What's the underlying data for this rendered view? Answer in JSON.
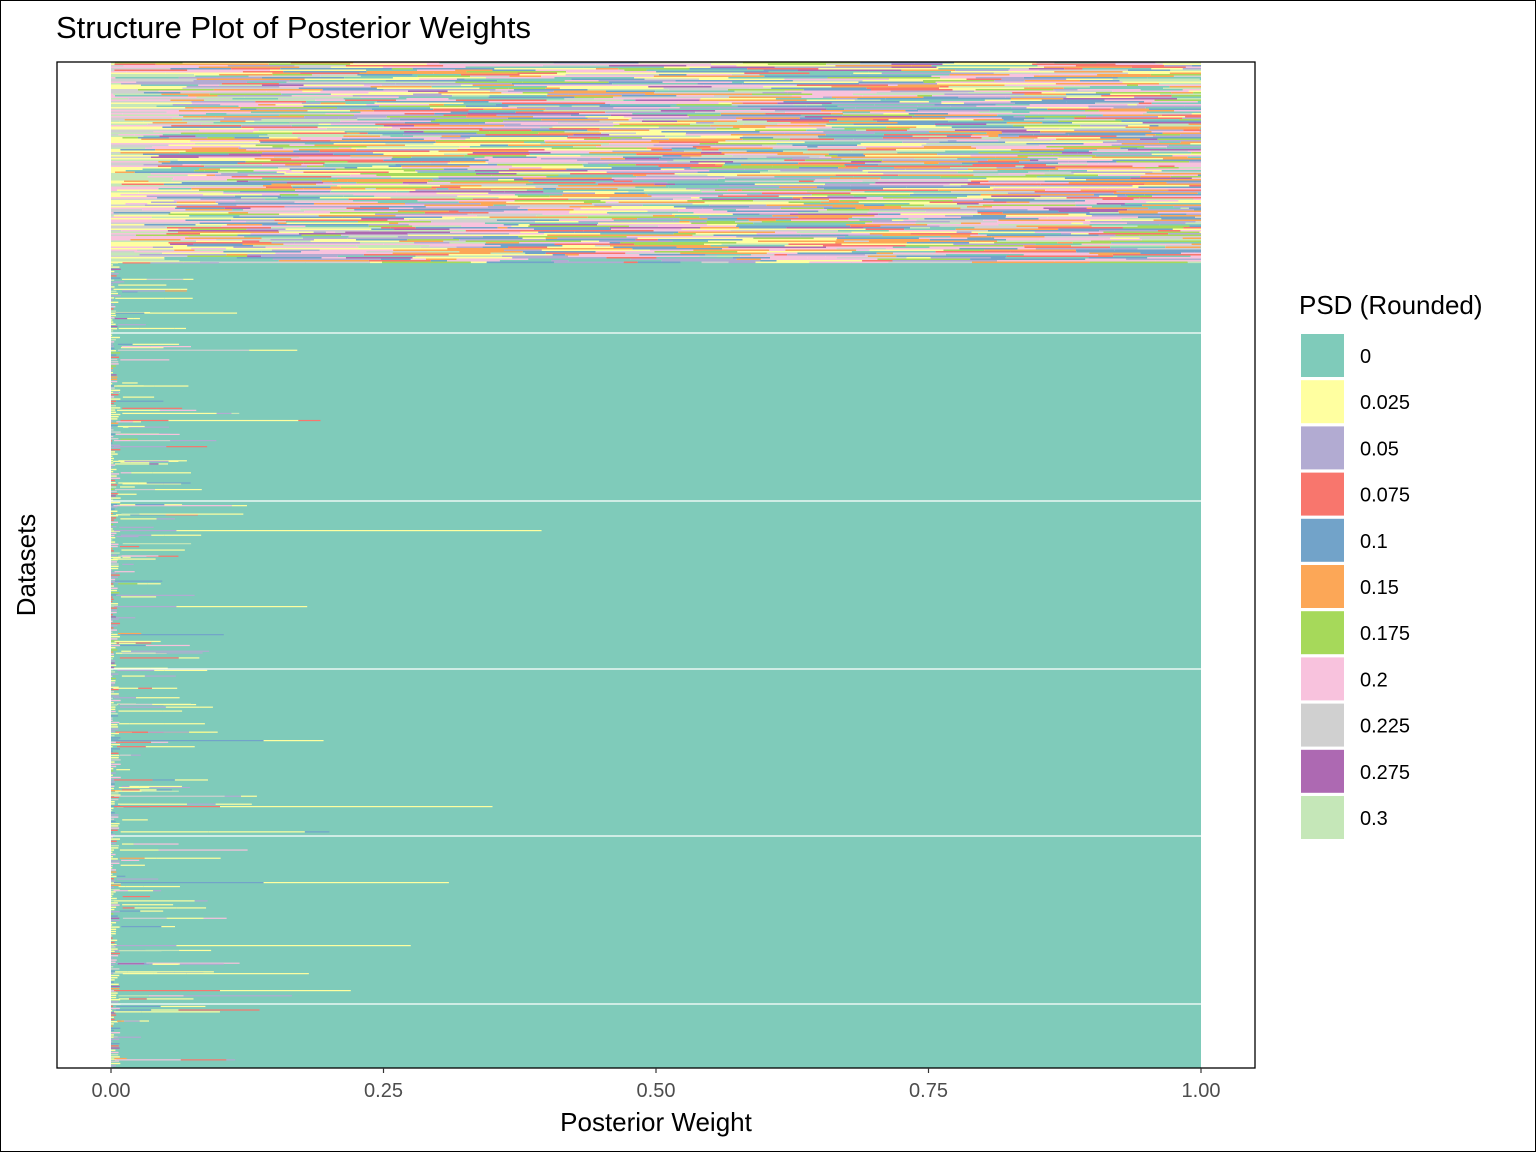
{
  "chart_data": {
    "type": "bar",
    "orientation": "horizontal-stacked",
    "title": "Structure Plot of Posterior Weights",
    "xlabel": "Posterior Weight",
    "ylabel": "Datasets",
    "xlim": [
      0,
      1
    ],
    "x_ticks": [
      "0.00",
      "0.25",
      "0.50",
      "0.75",
      "1.00"
    ],
    "x_tick_values": [
      0,
      0.25,
      0.5,
      0.75,
      1
    ],
    "grid": false,
    "legend": {
      "title": "PSD (Rounded)",
      "position": "right",
      "entries": [
        {
          "label": "0",
          "color": "#7fcbba"
        },
        {
          "label": "0.025",
          "color": "#ffffa0"
        },
        {
          "label": "0.05",
          "color": "#b2abd2"
        },
        {
          "label": "0.075",
          "color": "#f8766d"
        },
        {
          "label": "0.1",
          "color": "#72a3c9"
        },
        {
          "label": "0.15",
          "color": "#fca757"
        },
        {
          "label": "0.175",
          "color": "#a6d95a"
        },
        {
          "label": "0.2",
          "color": "#f8c2dd"
        },
        {
          "label": "0.225",
          "color": "#d0d0d0"
        },
        {
          "label": "0.275",
          "color": "#ad69b2"
        },
        {
          "label": "0.3",
          "color": "#c5e7b8"
        }
      ]
    },
    "notes": {
      "mixed_region": "top ~20% of datasets show posterior weight spread across all PSD values",
      "dominant_region": "remaining ~80% of datasets place nearly all weight on PSD 0",
      "example_minor_segments": [
        {
          "psd": "0.025",
          "max_weight": 0.395
        },
        {
          "psd": "0.025",
          "max_weight": 0.35
        },
        {
          "psd": "0.025",
          "max_weight": 0.31
        },
        {
          "psd": "0.025",
          "max_weight": 0.275
        },
        {
          "psd": "0.025",
          "max_weight": 0.22
        },
        {
          "psd": "0.025",
          "max_weight": 0.195
        },
        {
          "psd": "0.025",
          "max_weight": 0.18
        }
      ]
    }
  }
}
